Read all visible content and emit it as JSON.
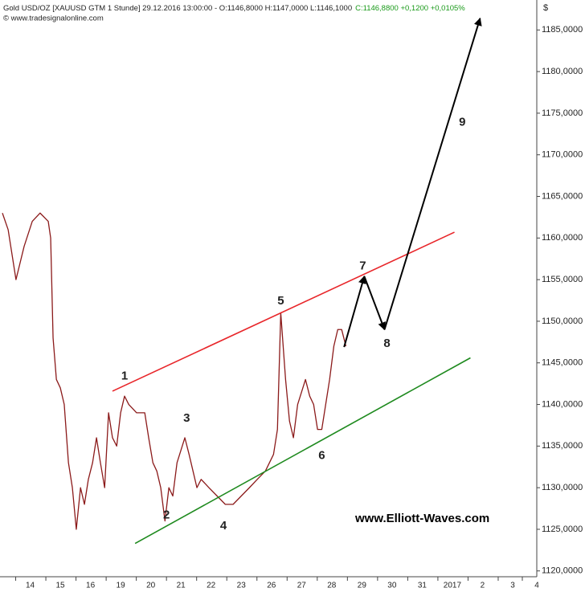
{
  "header": {
    "text": "Gold USD/OZ [XAUUSD GTM  1 Stunde] 29.12.2016 13:00:00 - O:1146,8000 H:1147,0000 L:1146,1000",
    "close_text": "C:1146,8800 +0,1200 +0,0105%",
    "source": "© www.tradesignalonline.com"
  },
  "chart_data": {
    "type": "line",
    "y_unit": "$",
    "watermark": "www.Elliott-Waves.com",
    "xlim": [
      0,
      178
    ],
    "ylim": [
      1119.3,
      1188.6
    ],
    "xticks": [
      {
        "value": 10,
        "label": "14"
      },
      {
        "value": 20,
        "label": "15"
      },
      {
        "value": 30,
        "label": "16"
      },
      {
        "value": 40,
        "label": "19"
      },
      {
        "value": 50,
        "label": "20"
      },
      {
        "value": 60,
        "label": "21"
      },
      {
        "value": 70,
        "label": "22"
      },
      {
        "value": 80,
        "label": "23"
      },
      {
        "value": 90,
        "label": "26"
      },
      {
        "value": 100,
        "label": "27"
      },
      {
        "value": 110,
        "label": "28"
      },
      {
        "value": 120,
        "label": "29"
      },
      {
        "value": 130,
        "label": "30"
      },
      {
        "value": 140,
        "label": "31"
      },
      {
        "value": 150,
        "label": "2017"
      },
      {
        "value": 160,
        "label": "2"
      },
      {
        "value": 170,
        "label": "3"
      },
      {
        "value": 178,
        "label": "4"
      }
    ],
    "yticks": [
      {
        "value": 1120,
        "label": "1120,0000"
      },
      {
        "value": 1125,
        "label": "1125,0000"
      },
      {
        "value": 1130,
        "label": "1130,0000"
      },
      {
        "value": 1135,
        "label": "1135,0000"
      },
      {
        "value": 1140,
        "label": "1140,0000"
      },
      {
        "value": 1145,
        "label": "1145,0000"
      },
      {
        "value": 1150,
        "label": "1150,0000"
      },
      {
        "value": 1155,
        "label": "1155,0000"
      },
      {
        "value": 1160,
        "label": "1160,0000"
      },
      {
        "value": 1165,
        "label": "1165,0000"
      },
      {
        "value": 1170,
        "label": "1170,0000"
      },
      {
        "value": 1175,
        "label": "1175,0000"
      },
      {
        "value": 1180,
        "label": "1180,0000"
      },
      {
        "value": 1185,
        "label": "1185,0000"
      }
    ],
    "series": [
      {
        "color": "#8b1a1a",
        "width": 1.3,
        "x": [
          0.8,
          2.7,
          5.3,
          8,
          10.7,
          13.3,
          16,
          16.8,
          17.6,
          18.7,
          20,
          21.3,
          22.7,
          24,
          25.3,
          26.7,
          28,
          29.3,
          30.7,
          32,
          33.3,
          34.7,
          36,
          37.3,
          38.7,
          40,
          41.3,
          42.7,
          45.3,
          48,
          49.3,
          50.7,
          52,
          53.3,
          54.7,
          56,
          57.3,
          58.7,
          61.3,
          62.7,
          64,
          65.3,
          66.7,
          69.3,
          72,
          74.7,
          77.3,
          80,
          82.7,
          85.3,
          88,
          90.7,
          92,
          93.1,
          94.7,
          96,
          97.3,
          98.7,
          101.3,
          102.7,
          104,
          105.3,
          106.7,
          108,
          109.3,
          110.7,
          112,
          113.3,
          114.7
        ],
        "values": [
          1163,
          1161,
          1155,
          1159,
          1162,
          1163,
          1162,
          1160,
          1148,
          1143,
          1142,
          1140,
          1133,
          1130,
          1125,
          1130,
          1128,
          1131,
          1133,
          1136,
          1133,
          1130,
          1139,
          1136,
          1135,
          1139,
          1141,
          1140,
          1139,
          1139,
          1136,
          1133,
          1132,
          1130,
          1126,
          1130,
          1129,
          1133,
          1136,
          1134,
          1132,
          1130,
          1131,
          1130,
          1129,
          1128,
          1128,
          1129,
          1130,
          1131,
          1132,
          1134,
          1137,
          1151,
          1143,
          1138,
          1136,
          1140,
          1143,
          1141,
          1140,
          1137,
          1137,
          1140,
          1143,
          1147,
          1149,
          1149,
          1147
        ]
      },
      {
        "color": "#e8262a",
        "width": 1.6,
        "x": [
          37.3,
          150.7
        ],
        "values": [
          1141.6,
          1160.7
        ]
      },
      {
        "color": "#1e8a1e",
        "width": 1.6,
        "x": [
          44.8,
          156
        ],
        "values": [
          1123.3,
          1145.6
        ]
      },
      {
        "color": "#000000",
        "width": 2,
        "arrow": true,
        "x": [
          114.1,
          120.8
        ],
        "values": [
          1146.9,
          1155.4
        ]
      },
      {
        "color": "#000000",
        "width": 2,
        "arrow": true,
        "x": [
          120.8,
          127.5
        ],
        "values": [
          1155.4,
          1149
        ]
      },
      {
        "color": "#000000",
        "width": 2,
        "arrow": true,
        "x": [
          127.5,
          159.2
        ],
        "values": [
          1149,
          1186.4
        ]
      }
    ],
    "annotations": [
      {
        "text": "1",
        "x": 41.3,
        "y": 1143.4
      },
      {
        "text": "2",
        "x": 55.2,
        "y": 1126.7
      },
      {
        "text": "3",
        "x": 61.9,
        "y": 1138.3
      },
      {
        "text": "4",
        "x": 74.1,
        "y": 1125.4
      },
      {
        "text": "5",
        "x": 93.1,
        "y": 1152.4
      },
      {
        "text": "6",
        "x": 106.7,
        "y": 1133.8
      },
      {
        "text": "7",
        "x": 120.3,
        "y": 1156.6
      },
      {
        "text": "8",
        "x": 128.3,
        "y": 1147.3
      },
      {
        "text": "9",
        "x": 153.3,
        "y": 1173.9
      }
    ]
  }
}
